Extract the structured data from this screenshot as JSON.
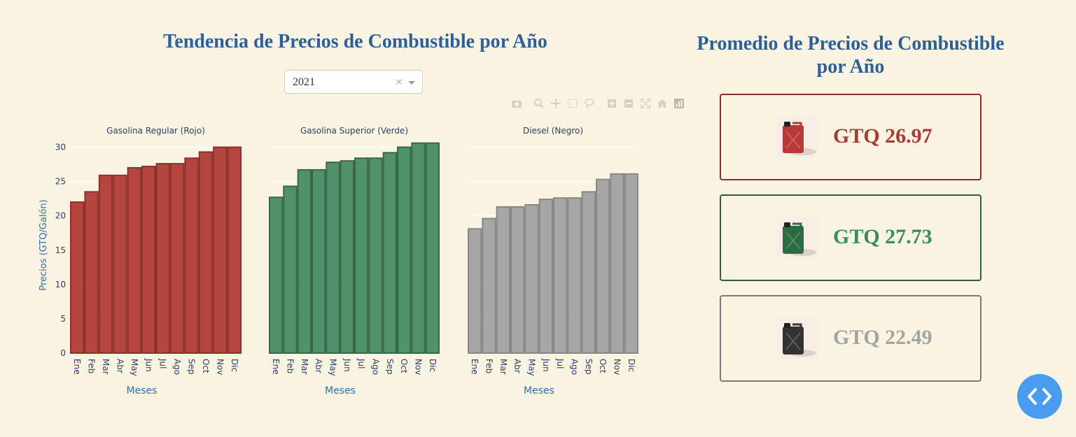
{
  "left_title": "Tendencia de Precios de Combustible por Año",
  "right_title": "Promedio de Precios de Combustible por Año",
  "year_select": {
    "value": "2021",
    "clear": "×"
  },
  "modebar_icons": [
    "camera-icon",
    "zoom-icon",
    "pan-icon",
    "box-select-icon",
    "lasso-icon",
    "zoom-in-icon",
    "zoom-out-icon",
    "autoscale-icon",
    "home-icon",
    "plotly-logo-icon"
  ],
  "chart_data": {
    "type": "bar",
    "categories": [
      "Ene",
      "Feb",
      "Mar",
      "Abr",
      "May",
      "Jun",
      "Jul",
      "Ago",
      "Sep",
      "Oct",
      "Nov",
      "Dic"
    ],
    "ylabel": "Precios (GTQ/Galón)",
    "ylim": [
      0,
      32.5
    ],
    "yticks": [
      0,
      5,
      10,
      15,
      20,
      25,
      30
    ],
    "xlabel": "Meses",
    "grid": true,
    "panels": [
      {
        "title": "Gasolina Regular (Rojo)",
        "fill": "#b5453f",
        "stroke": "#8d3029",
        "values": [
          22.0,
          23.5,
          25.9,
          25.9,
          27.0,
          27.2,
          27.6,
          27.6,
          28.4,
          29.3,
          30.0,
          30.0
        ]
      },
      {
        "title": "Gasolina Superior (Verde)",
        "fill": "#52926a",
        "stroke": "#356848",
        "values": [
          22.7,
          24.3,
          26.7,
          26.7,
          27.8,
          28.0,
          28.4,
          28.4,
          29.2,
          30.0,
          30.6,
          30.6
        ]
      },
      {
        "title": "Diesel (Negro)",
        "fill": "#a6a6a6",
        "stroke": "#878787",
        "values": [
          18.1,
          19.6,
          21.3,
          21.3,
          21.6,
          22.4,
          22.6,
          22.6,
          23.5,
          25.3,
          26.1,
          26.1
        ]
      }
    ]
  },
  "cards": [
    {
      "price": "GTQ 26.97",
      "color": "#a83a34",
      "border": "#8a2c28",
      "can": "#b83a36"
    },
    {
      "price": "GTQ 27.73",
      "color": "#3f8a5c",
      "border": "#2f5d3c",
      "can": "#2c6a42"
    },
    {
      "price": "GTQ 22.49",
      "color": "#a3a3a3",
      "border": "#7a7a7a",
      "can": "#333333"
    }
  ],
  "fab_icon": "code-icon"
}
